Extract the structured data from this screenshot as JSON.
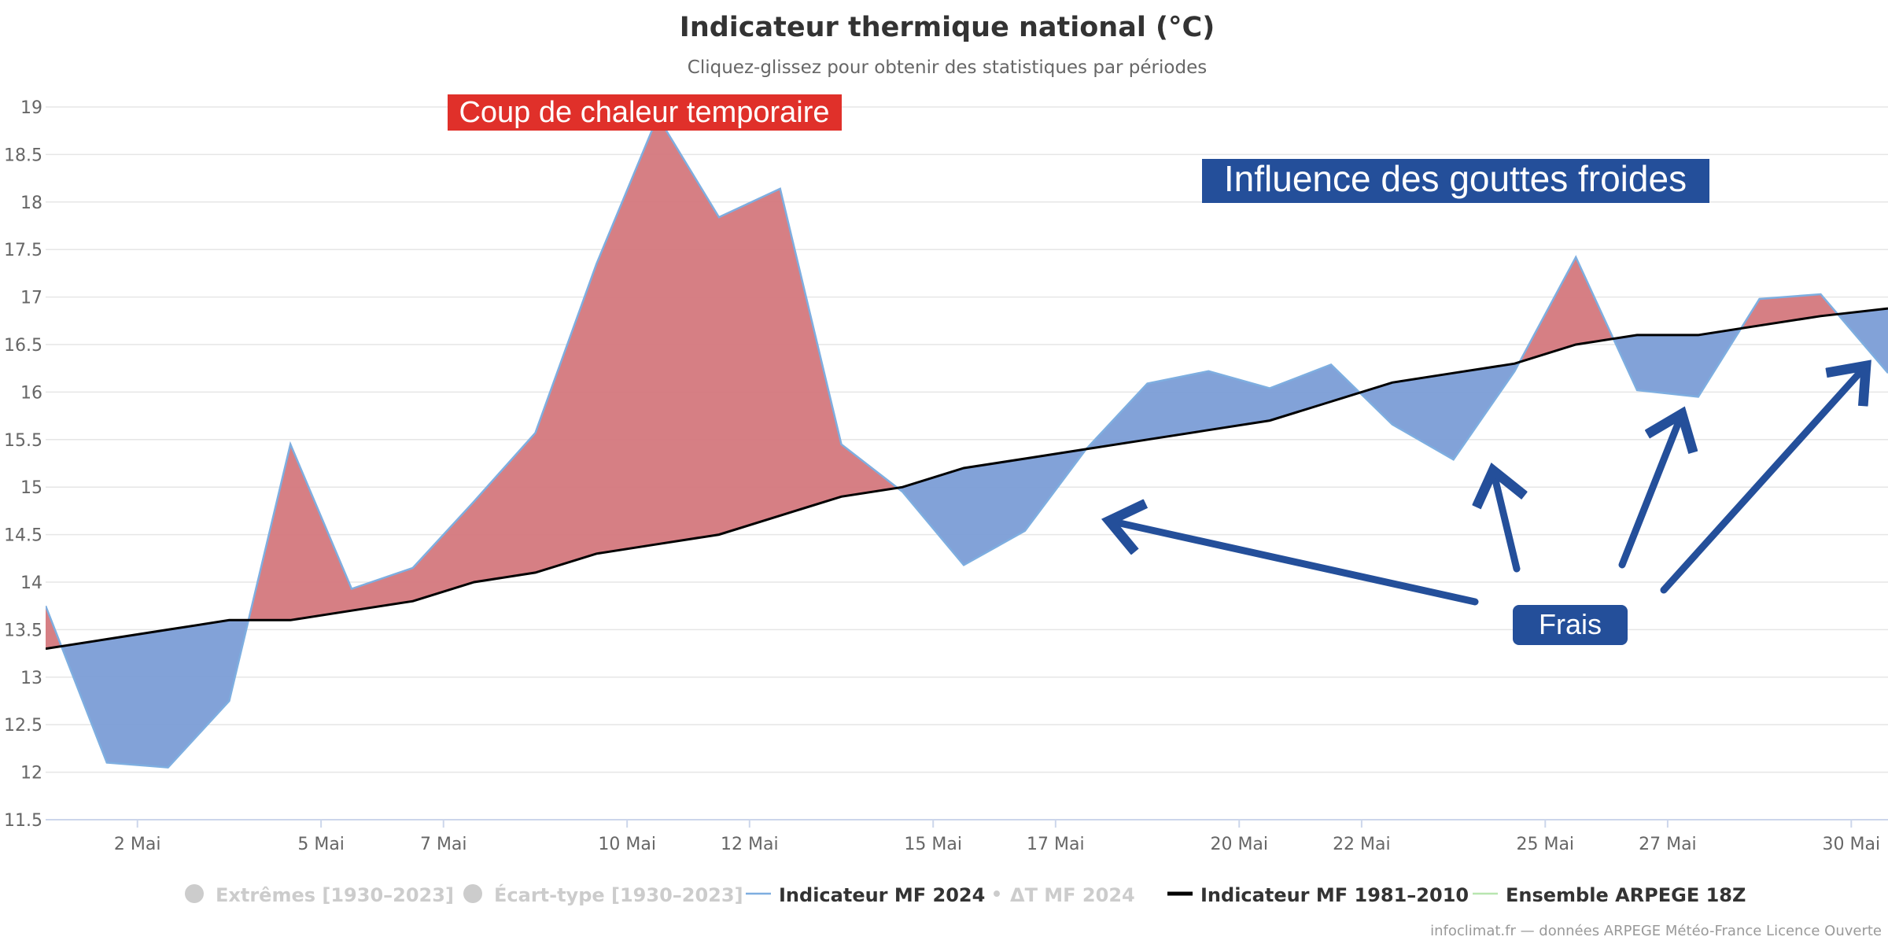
{
  "chart_data": {
    "type": "area",
    "title": "Indicateur thermique national (°C)",
    "subtitle": "Cliquez-glissez pour obtenir des statistiques par périodes",
    "ylim": [
      11.5,
      19
    ],
    "yticks": [
      11.5,
      12,
      12.5,
      13,
      13.5,
      14,
      14.5,
      15,
      15.5,
      16,
      16.5,
      17,
      17.5,
      18,
      18.5,
      19
    ],
    "xlim": [
      0.5,
      30.6
    ],
    "xticks": [
      {
        "day": 2,
        "label": "2 Mai"
      },
      {
        "day": 5,
        "label": "5 Mai"
      },
      {
        "day": 7,
        "label": "7 Mai"
      },
      {
        "day": 10,
        "label": "10 Mai"
      },
      {
        "day": 12,
        "label": "12 Mai"
      },
      {
        "day": 15,
        "label": "15 Mai"
      },
      {
        "day": 17,
        "label": "17 Mai"
      },
      {
        "day": 20,
        "label": "20 Mai"
      },
      {
        "day": 22,
        "label": "22 Mai"
      },
      {
        "day": 25,
        "label": "25 Mai"
      },
      {
        "day": 27,
        "label": "27 Mai"
      },
      {
        "day": 30,
        "label": "30 Mai"
      }
    ],
    "series": [
      {
        "name": "Indicateur MF 2024",
        "color": "#7eaee0",
        "x": [
          0.5,
          1.5,
          2.5,
          3.5,
          4.5,
          5.5,
          6.5,
          7.5,
          8.5,
          9.5,
          10.5,
          11.5,
          12.5,
          13.5,
          14.5,
          15.5,
          16.5,
          17.5,
          18.5,
          19.5,
          20.5,
          21.5,
          22.5,
          23.5,
          24.5,
          25.5,
          26.5,
          27.5,
          28.5,
          29.5,
          30.6
        ],
        "values": [
          13.75,
          12.1,
          12.05,
          12.75,
          15.45,
          13.93,
          14.15,
          14.85,
          15.57,
          17.35,
          18.9,
          17.84,
          18.14,
          15.45,
          14.95,
          14.18,
          14.54,
          15.4,
          16.09,
          16.22,
          16.04,
          16.29,
          15.66,
          15.29,
          16.22,
          17.42,
          16.02,
          15.95,
          16.98,
          17.03,
          16.2
        ]
      },
      {
        "name": "Indicateur MF 1981–2010",
        "color": "#000000",
        "x": [
          0.5,
          1.5,
          2.5,
          3.5,
          4.5,
          5.5,
          6.5,
          7.5,
          8.5,
          9.5,
          10.5,
          11.5,
          12.5,
          13.5,
          14.5,
          15.5,
          16.5,
          17.5,
          18.5,
          19.5,
          20.5,
          21.5,
          22.5,
          23.5,
          24.5,
          25.5,
          26.5,
          27.5,
          28.5,
          29.5,
          30.6
        ],
        "values": [
          13.3,
          13.4,
          13.5,
          13.6,
          13.6,
          13.7,
          13.8,
          14.0,
          14.1,
          14.3,
          14.4,
          14.5,
          14.7,
          14.9,
          15.0,
          15.2,
          15.3,
          15.4,
          15.5,
          15.6,
          15.7,
          15.9,
          16.1,
          16.2,
          16.3,
          16.5,
          16.6,
          16.6,
          16.7,
          16.8,
          16.88
        ]
      }
    ],
    "fill_colors": {
      "above": "#d4787d",
      "below": "#7b9dd6"
    },
    "legend": {
      "position": "bottom",
      "items": [
        {
          "label": "Extrêmes [1930–2023]",
          "symbol": "circle",
          "color": "#cccccc",
          "active": false
        },
        {
          "label": "Écart-type [1930–2023]",
          "symbol": "circle",
          "color": "#cccccc",
          "active": false
        },
        {
          "label": "Indicateur MF 2024",
          "symbol": "line",
          "color": "#7eaee0",
          "active": true
        },
        {
          "label": "ΔT MF 2024",
          "symbol": "dot",
          "color": "#cccccc",
          "active": false
        },
        {
          "label": "Indicateur MF 1981–2010",
          "symbol": "thickline",
          "color": "#000000",
          "active": true
        },
        {
          "label": "Ensemble ARPEGE 18Z",
          "symbol": "line",
          "color": "#b8e6b0",
          "active": true
        }
      ]
    },
    "annotations": [
      {
        "text": "Coup de chaleur temporaire",
        "bg": "#e0302a"
      },
      {
        "text": "Influence des gouttes froides",
        "bg": "#244f9a"
      },
      {
        "text": "Frais",
        "bg": "#244f9a"
      }
    ],
    "credit": "infoclimat.fr — données ARPEGE Météo-France Licence Ouverte"
  }
}
